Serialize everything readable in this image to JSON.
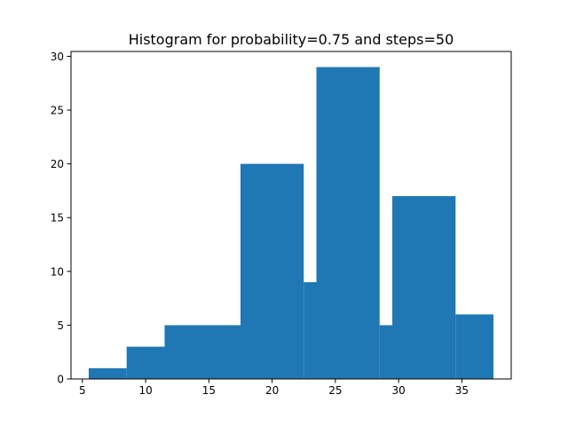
{
  "chart_data": {
    "type": "bar",
    "title": "Histogram for probability=0.75 and steps=50",
    "xlabel": "",
    "ylabel": "",
    "xlim": [
      4.1,
      38.9
    ],
    "ylim": [
      0,
      30.45
    ],
    "xticks": [
      5,
      10,
      15,
      20,
      25,
      30,
      35
    ],
    "yticks": [
      0,
      5,
      10,
      15,
      20,
      25,
      30
    ],
    "grid": false,
    "color": "#1f77b4",
    "bins": [
      {
        "left": 5.5,
        "right": 8.5,
        "value": 1
      },
      {
        "left": 8.5,
        "right": 11.5,
        "value": 3
      },
      {
        "left": 11.5,
        "right": 17.5,
        "value": 5
      },
      {
        "left": 17.5,
        "right": 22.5,
        "value": 20
      },
      {
        "left": 22.5,
        "right": 23.5,
        "value": 9
      },
      {
        "left": 23.5,
        "right": 28.5,
        "value": 29
      },
      {
        "left": 28.5,
        "right": 29.5,
        "value": 5
      },
      {
        "left": 29.5,
        "right": 34.5,
        "value": 17
      },
      {
        "left": 34.5,
        "right": 37.5,
        "value": 6
      }
    ]
  }
}
